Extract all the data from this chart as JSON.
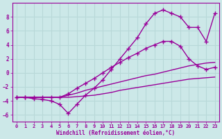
{
  "xlabel": "Windchill (Refroidissement éolien,°C)",
  "background_color": "#cce8e8",
  "grid_color": "#b8d8d8",
  "line_color": "#990099",
  "xlim": [
    -0.5,
    23.5
  ],
  "ylim": [
    -7,
    10
  ],
  "xticks": [
    0,
    1,
    2,
    3,
    4,
    5,
    6,
    7,
    8,
    9,
    10,
    11,
    12,
    13,
    14,
    15,
    16,
    17,
    18,
    19,
    20,
    21,
    22,
    23
  ],
  "yticks": [
    -6,
    -4,
    -2,
    0,
    2,
    4,
    6,
    8
  ],
  "line1_x": [
    0,
    1,
    2,
    3,
    4,
    5,
    6,
    7,
    8,
    9,
    10,
    11,
    12,
    13,
    14,
    15,
    16,
    17,
    18,
    19,
    20,
    21,
    22,
    23
  ],
  "line1_y": [
    -3.5,
    -3.5,
    -3.5,
    -3.5,
    -3.5,
    -3.5,
    -3.5,
    -3.4,
    -3.3,
    -3.2,
    -3.0,
    -2.8,
    -2.5,
    -2.3,
    -2.1,
    -1.9,
    -1.7,
    -1.5,
    -1.3,
    -1.1,
    -0.9,
    -0.8,
    -0.7,
    -0.6
  ],
  "line2_x": [
    0,
    1,
    2,
    3,
    4,
    5,
    6,
    7,
    8,
    9,
    10,
    11,
    12,
    13,
    14,
    15,
    16,
    17,
    18,
    19,
    20,
    21,
    22,
    23
  ],
  "line2_y": [
    -3.5,
    -3.5,
    -3.5,
    -3.5,
    -3.5,
    -3.5,
    -3.2,
    -2.9,
    -2.5,
    -2.2,
    -1.9,
    -1.6,
    -1.3,
    -1.0,
    -0.7,
    -0.4,
    -0.2,
    0.1,
    0.4,
    0.7,
    1.0,
    1.2,
    1.4,
    1.5
  ],
  "line3_x": [
    0,
    1,
    2,
    3,
    4,
    5,
    6,
    7,
    8,
    9,
    10,
    11,
    12,
    13,
    14,
    15,
    16,
    17,
    18,
    19,
    20,
    21,
    22,
    23
  ],
  "line3_y": [
    -3.5,
    -3.5,
    -3.7,
    -3.8,
    -4.0,
    -4.5,
    -5.8,
    -4.5,
    -3.2,
    -2.2,
    -1.0,
    0.5,
    2.0,
    3.5,
    5.0,
    7.0,
    8.5,
    9.0,
    8.5,
    8.0,
    6.5,
    6.5,
    4.5,
    8.5
  ],
  "line4_x": [
    0,
    1,
    2,
    3,
    4,
    5,
    6,
    7,
    8,
    9,
    10,
    11,
    12,
    13,
    14,
    15,
    16,
    17,
    18,
    19,
    20,
    21,
    22,
    23
  ],
  "line4_y": [
    -3.5,
    -3.5,
    -3.5,
    -3.5,
    -3.5,
    -3.5,
    -3.0,
    -2.2,
    -1.5,
    -0.8,
    0.0,
    0.8,
    1.5,
    2.2,
    2.8,
    3.5,
    4.0,
    4.5,
    4.5,
    3.8,
    2.0,
    1.0,
    0.5,
    0.8
  ]
}
